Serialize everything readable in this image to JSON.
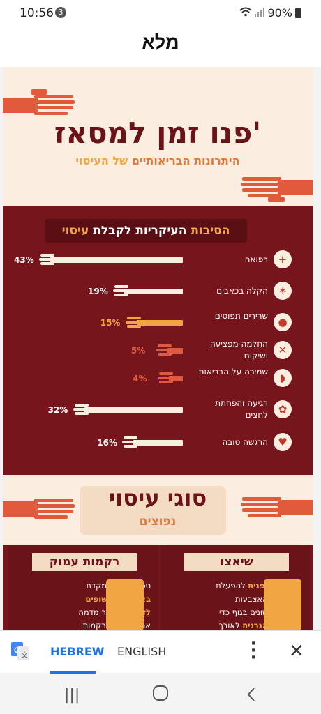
{
  "status": {
    "time": "10:56",
    "notif_count": "3",
    "battery": "90%"
  },
  "app": {
    "title": "מלא"
  },
  "hero": {
    "title": "פנו זמן למסאז'",
    "subtitle_a": "היתרונות הבריאותיים",
    "subtitle_b": "של העיסוי"
  },
  "reasons": {
    "header_a": "הסיבות ",
    "header_b": "העיקריות לקבלת ",
    "header_c": "עיסוי",
    "items": [
      {
        "label": "רפואה",
        "pct": "43%",
        "icon": "plus-icon",
        "value": 43
      },
      {
        "label": "הקלה בכאבים",
        "pct": "19%",
        "icon": "pain-icon",
        "value": 19
      },
      {
        "label": "שרירים תפוסים",
        "pct": "15%",
        "icon": "muscle-icon",
        "value": 15
      },
      {
        "label": "החלמה מפציעה ושיקום",
        "pct": "5%",
        "icon": "x-icon",
        "value": 5
      },
      {
        "label": "שמירה על הבריאות",
        "pct": "4%",
        "icon": "health-icon",
        "value": 4
      },
      {
        "label": "רגיעה והפחתת לחצים",
        "pct": "32%",
        "icon": "lotus-icon",
        "value": 32
      },
      {
        "label": "הרגשה טובה",
        "pct": "16%",
        "icon": "heart-icon",
        "value": 16
      }
    ]
  },
  "types": {
    "title": "סוגי עיסוי",
    "subtitle": "נפוצים"
  },
  "cards": [
    {
      "title": "שיאצו",
      "text_b1": "טכניקה יפנית",
      "text1": " להפעלת לחץ עם האצבעות באזורים שונים בגוף כדי ",
      "text_b2": "להזרים אנרגיה",
      "text2": " לאורך ערוצי האנרגיה הכלל"
    },
    {
      "title": "רקמות עמוק",
      "text0": "טכניקה המתמקדת ",
      "text_b1": "באזורים החשופים לדלקות",
      "text1": ", אשר מדמה את פעילות הרקמות בעזרת לחץ האצבעות"
    }
  ],
  "translate": {
    "hebrew": "HEBREW",
    "english": "ENGLISH"
  },
  "colors": {
    "maroon": "#76151c",
    "orange": "#e07a3a",
    "cream": "#fbeee0",
    "accent_blue": "#1a73e8"
  }
}
